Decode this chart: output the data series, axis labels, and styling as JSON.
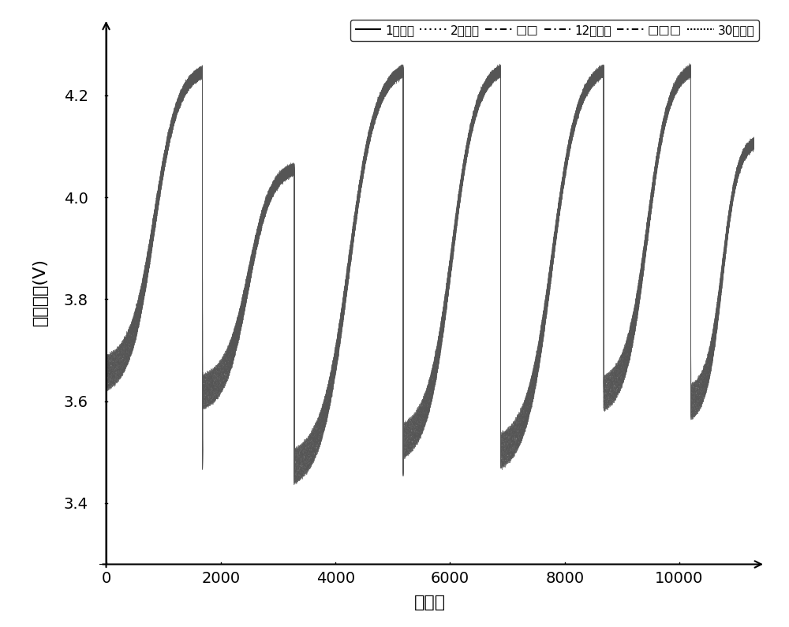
{
  "title": "",
  "xlabel": "采样点",
  "ylabel": "充电电压(V)",
  "xlim": [
    -200,
    11500
  ],
  "ylim": [
    3.28,
    4.35
  ],
  "xticks": [
    0,
    2000,
    4000,
    6000,
    8000,
    10000
  ],
  "yticks": [
    3.4,
    3.6,
    3.8,
    4.0,
    4.2
  ],
  "line_color": "#555555",
  "background_color": "#ffffff",
  "legend_entries": [
    "1号电池",
    "2号电池",
    "□□",
    "12号电池",
    "□□□",
    "30号电池"
  ],
  "num_batteries": 30,
  "cycles": [
    {
      "x_start": 0,
      "x_end": 1680,
      "y_start": 3.655,
      "y_end": 4.245,
      "drop_to": 3.485
    },
    {
      "x_start": 1680,
      "x_end": 3280,
      "y_start": 3.618,
      "y_end": 4.055,
      "drop_to": 3.598
    },
    {
      "x_start": 3280,
      "x_end": 5180,
      "y_start": 3.472,
      "y_end": 4.248,
      "drop_to": 3.472
    },
    {
      "x_start": 5180,
      "x_end": 6880,
      "y_start": 3.522,
      "y_end": 4.248,
      "drop_to": 3.518
    },
    {
      "x_start": 6880,
      "x_end": 8680,
      "y_start": 3.502,
      "y_end": 4.248,
      "drop_to": 3.615
    },
    {
      "x_start": 8680,
      "x_end": 10200,
      "y_start": 3.615,
      "y_end": 4.248,
      "drop_to": 3.598
    },
    {
      "x_start": 10200,
      "x_end": 11300,
      "y_start": 3.598,
      "y_end": 4.105,
      "drop_to": null
    }
  ],
  "battery_spread": 0.065,
  "noise_sigma": 0.002
}
